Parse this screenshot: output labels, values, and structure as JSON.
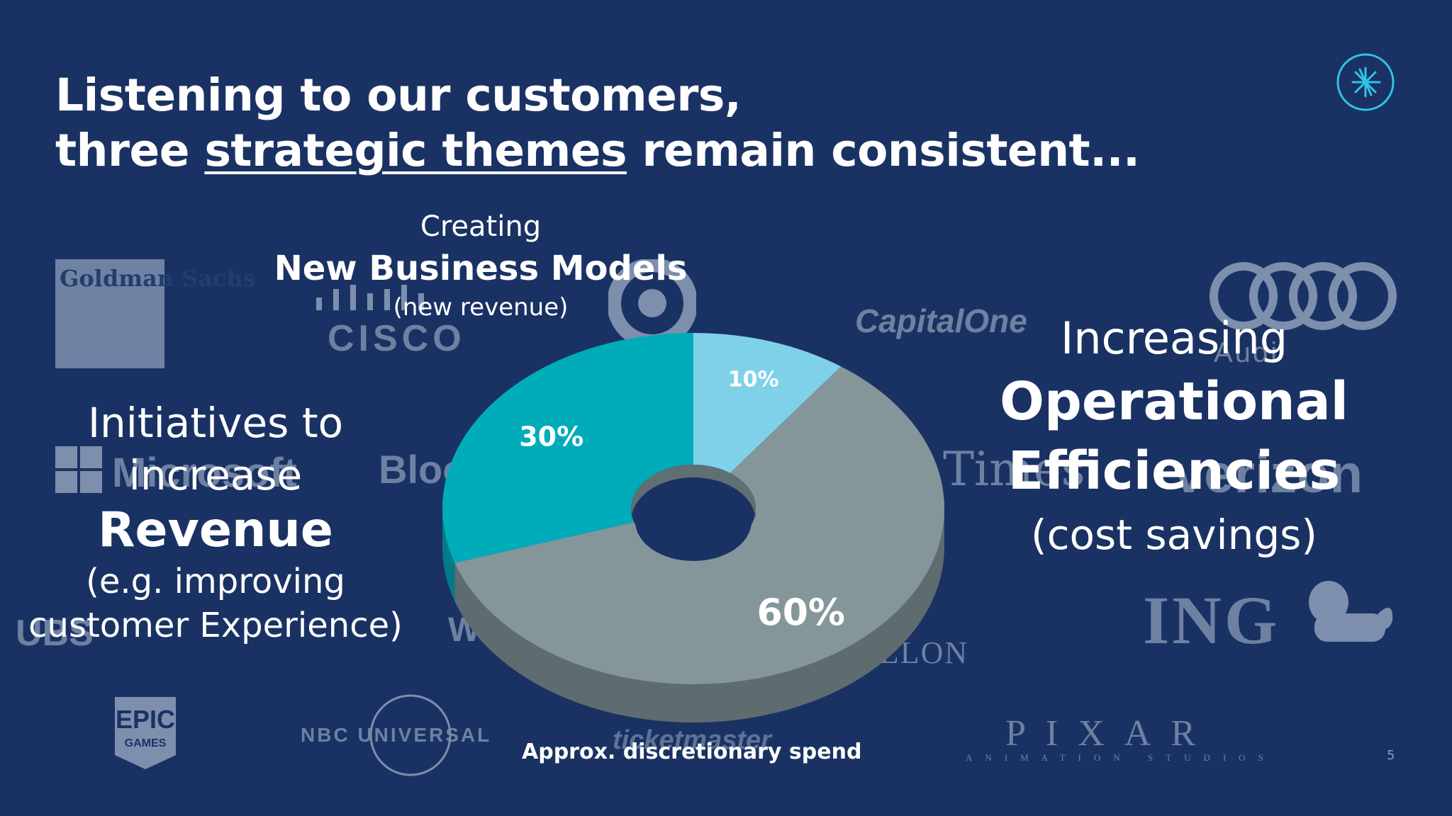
{
  "title": {
    "line1": "Listening to our customers,",
    "line2_pre": "three ",
    "line2_underlined": "strategic themes",
    "line2_post": " remain consistent..."
  },
  "themes": {
    "revenue": {
      "line1": "Initiatives to",
      "line2": "increase",
      "heading": "Revenue",
      "sub1": "(e.g. improving",
      "sub2": "customer Experience)"
    },
    "business_models": {
      "line1": "Creating",
      "heading": "New Business Models",
      "sub": "(new revenue)"
    },
    "efficiencies": {
      "line1": "Increasing",
      "heading1": "Operational",
      "heading2": "Efficiencies",
      "sub": "(cost savings)"
    }
  },
  "background_logos": {
    "goldman": "Goldman Sachs",
    "cisco": "CISCO",
    "capital_one": "CapitalOne",
    "audi": "Audi",
    "microsoft": "Microsoft",
    "bloomberg": "Bloo",
    "times": "Times",
    "verizon": "verizon",
    "ing": "ING",
    "mellon": "ELLON",
    "wm": "W",
    "ubs": "UBS",
    "epic": "EPIC GAMES",
    "nbc": "NBC UNIVERSAL",
    "ticketmaster": "ticketmaster",
    "pixar": "PIXAR",
    "pixar_sub": "ANIMATION STUDIOS"
  },
  "chart_data": {
    "type": "pie",
    "style": "3d-donut",
    "slices": [
      {
        "label": "10%",
        "value": 10,
        "color": "#7fd1ea"
      },
      {
        "label": "60%",
        "value": 60,
        "color": "#84969a"
      },
      {
        "label": "30%",
        "value": 30,
        "color": "#00acba"
      }
    ],
    "caption": "Approx. discretionary spend"
  },
  "colors": {
    "background": "#1a3263",
    "text": "#ffffff",
    "accent": "#2ec4e6"
  },
  "page_number": "5"
}
